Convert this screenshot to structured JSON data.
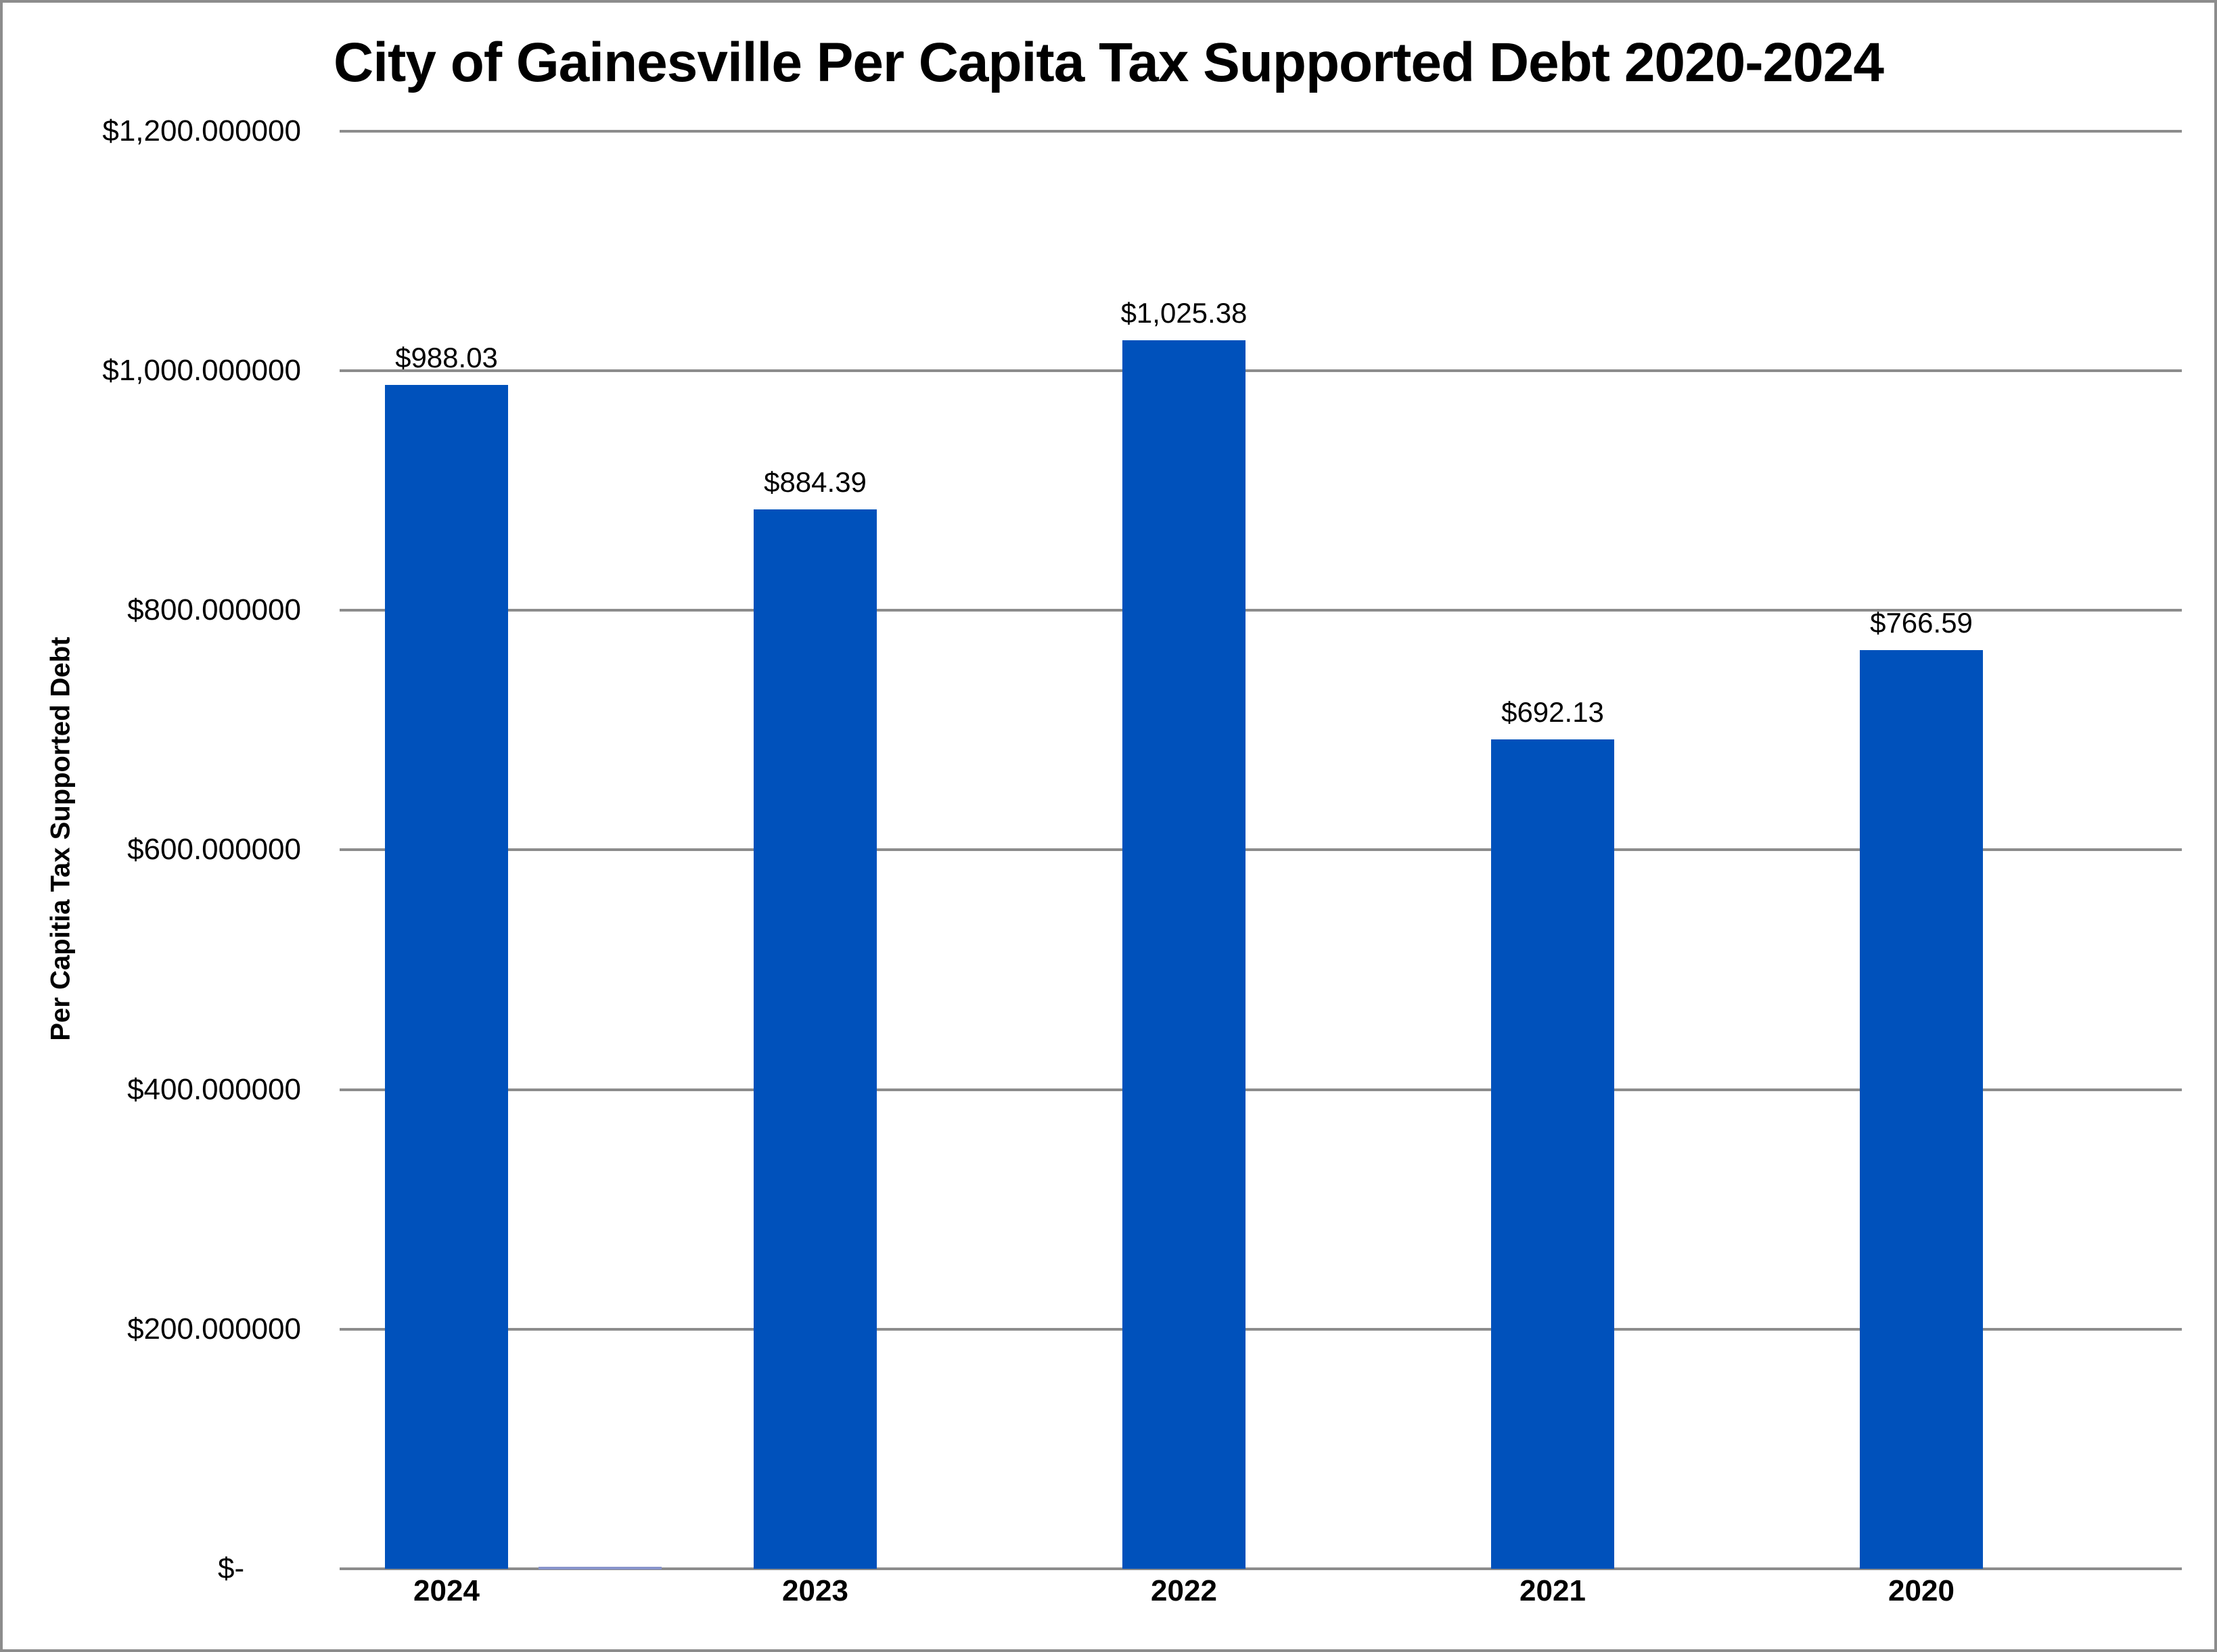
{
  "chart_data": {
    "type": "bar",
    "title": "City of Gainesville Per Capita Tax Supported Debt 2020-2024",
    "xlabel": "",
    "ylabel": "Per Capitia Tax Supported Debt",
    "categories": [
      "2024",
      "2023",
      "2022",
      "2021",
      "2020"
    ],
    "values": [
      988.03,
      884.39,
      1025.38,
      692.13,
      766.59
    ],
    "data_labels": [
      "$988.03",
      "$884.39",
      "$1,025.38",
      "$692.13",
      "$766.59"
    ],
    "ylim": [
      0,
      1200
    ],
    "yticks": [
      0,
      200,
      400,
      600,
      800,
      1000,
      1200
    ],
    "ytick_labels": [
      "$-",
      "$200.000000",
      "$400.000000",
      "$600.000000",
      "$800.000000",
      "$1,000.000000",
      "$1,200.000000"
    ],
    "grid": true,
    "legend": "none",
    "bar_color": "#0051BB",
    "gridline_color": "#8C8C8C"
  }
}
